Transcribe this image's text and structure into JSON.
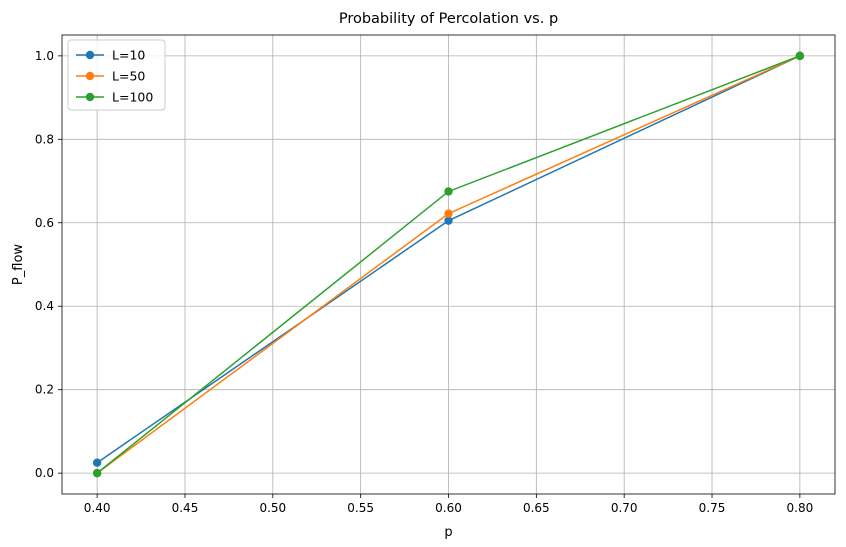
{
  "chart_data": {
    "type": "line",
    "title": "Probability of Percolation vs. p",
    "xlabel": "p",
    "ylabel": "P_flow",
    "xlim": [
      0.38,
      0.82
    ],
    "ylim": [
      -0.05,
      1.05
    ],
    "xticks": [
      0.4,
      0.45,
      0.5,
      0.55,
      0.6,
      0.65,
      0.7,
      0.75,
      0.8
    ],
    "xtick_labels": [
      "0.40",
      "0.45",
      "0.50",
      "0.55",
      "0.60",
      "0.65",
      "0.70",
      "0.75",
      "0.80"
    ],
    "yticks": [
      0.0,
      0.2,
      0.4,
      0.6,
      0.8,
      1.0
    ],
    "ytick_labels": [
      "0.0",
      "0.2",
      "0.4",
      "0.6",
      "0.8",
      "1.0"
    ],
    "grid": true,
    "legend_position": "top-left",
    "x": [
      0.4,
      0.6,
      0.8
    ],
    "series": [
      {
        "name": "L=10",
        "color": "#1f77b4",
        "values": [
          0.025,
          0.605,
          1.0
        ]
      },
      {
        "name": "L=50",
        "color": "#ff7f0e",
        "values": [
          0.0,
          0.622,
          1.0
        ]
      },
      {
        "name": "L=100",
        "color": "#2ca02c",
        "values": [
          0.0,
          0.675,
          1.0
        ]
      }
    ]
  }
}
